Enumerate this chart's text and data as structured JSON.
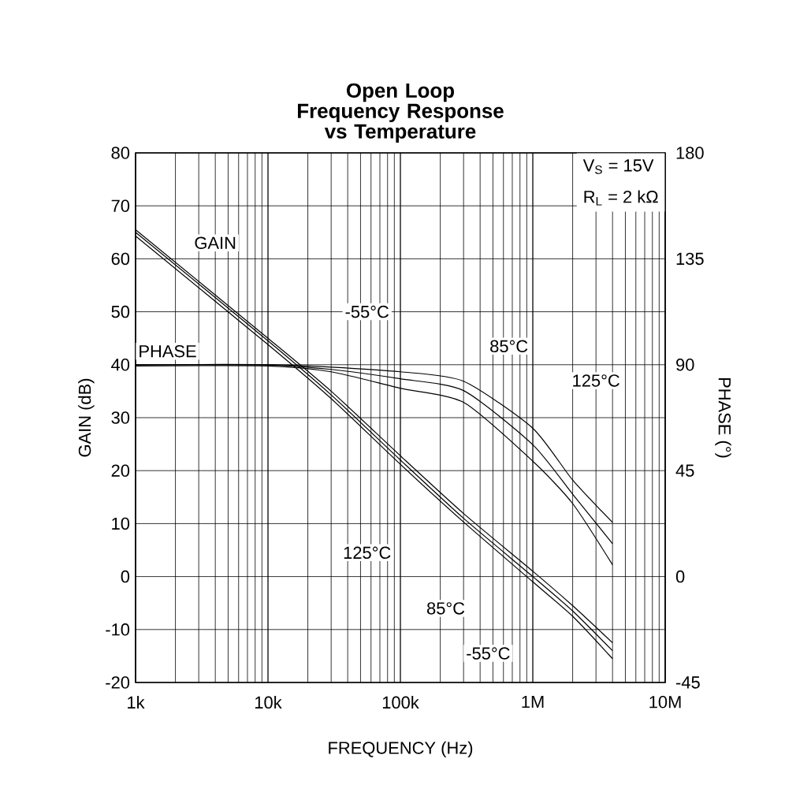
{
  "chart_data": {
    "type": "line",
    "title": "Open Loop Frequency Response vs Temperature",
    "xlabel": "FREQUENCY (Hz)",
    "ylabel": "GAIN (dB)",
    "y2label": "PHASE (°)",
    "x": [
      1000,
      10000,
      30000,
      100000,
      300000,
      1000000,
      2000000,
      4000000
    ],
    "series": [
      {
        "color": "#000000",
        "values": [
          65.5,
          45,
          35,
          22.8,
          11.9,
          1,
          -5.5,
          -12.5
        ]
      },
      {
        "color": "#000000",
        "values": [
          65,
          44.5,
          34.3,
          22,
          11,
          0,
          -6.5,
          -14
        ]
      },
      {
        "color": "#000000",
        "values": [
          64.3,
          43.8,
          33.6,
          21.2,
          10.3,
          -1,
          -7.5,
          -15.5
        ]
      },
      {
        "color": "#000000",
        "axis": "y2",
        "values": [
          90,
          90,
          89,
          87,
          83,
          63,
          41,
          23
        ]
      },
      {
        "color": "#000000",
        "axis": "y2",
        "values": [
          90,
          90,
          88,
          84,
          79,
          56,
          35,
          14
        ]
      },
      {
        "color": "#000000",
        "axis": "y2",
        "values": [
          89.5,
          89.5,
          87,
          80,
          74,
          49,
          31,
          5
        ]
      }
    ],
    "log": "x",
    "grid": true,
    "marker": "none",
    "line_style": "solid",
    "xlim": [
      1000,
      10000000
    ],
    "xticks": [
      {
        "value": 1000,
        "label": "1k"
      },
      {
        "value": 10000,
        "label": "10k"
      },
      {
        "value": 100000,
        "label": "100k"
      },
      {
        "value": 1000000,
        "label": "1M"
      },
      {
        "value": 10000000,
        "label": "10M"
      }
    ],
    "ylim": [
      -20,
      80
    ],
    "yticks": [
      -20,
      -10,
      0,
      10,
      20,
      30,
      40,
      50,
      60,
      70,
      80
    ],
    "y2lim": [
      -45,
      180
    ],
    "y2ticks": [
      -45,
      0,
      45,
      90,
      135,
      180
    ],
    "annotations": [
      {
        "text": "GAIN",
        "x": 4000,
        "y": 63
      },
      {
        "text": "PHASE",
        "x": 1000,
        "y": 40
      },
      {
        "text": "-55°C",
        "x": 56000,
        "y": 50
      },
      {
        "text": "85°C",
        "x": 660000,
        "y": 43.5
      },
      {
        "text": "125°C",
        "x": 3000000,
        "y": 37
      },
      {
        "text": "125°C",
        "x": 56000,
        "y": 4.5
      },
      {
        "text": "85°C",
        "x": 220000,
        "y": -6
      },
      {
        "text": "-55°C",
        "x": 460000,
        "y": -14.5
      },
      "V$_{S}$ = 15V",
      "R$_{L}$ = 2 kΩ"
    ]
  }
}
